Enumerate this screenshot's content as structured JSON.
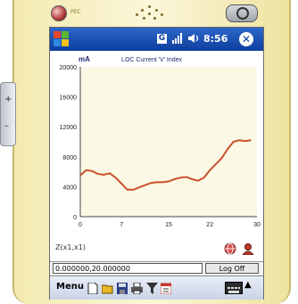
{
  "device": {
    "led_label": "PEC"
  },
  "titlebar": {
    "g_label": "G",
    "signal_icon": "signal-icon",
    "volume_icon": "volume-icon",
    "time": "8:56",
    "close_label": "✕"
  },
  "chart_data": {
    "type": "line",
    "title": "LOC Current 'V' Index",
    "ylabel": "mA",
    "xlabel": "",
    "xlim": [
      0,
      30
    ],
    "ylim": [
      0,
      20000
    ],
    "x_ticks": [
      "0",
      "7",
      "15",
      "22",
      "30"
    ],
    "y_ticks": [
      "0",
      "4000",
      "8000",
      "12000",
      "16000",
      "20000"
    ],
    "series": [
      {
        "color": "#c8502c",
        "x": [
          0,
          1,
          2,
          3,
          4,
          5,
          6,
          7,
          8,
          9,
          10,
          11,
          12,
          13,
          14,
          15,
          16,
          17,
          18,
          19,
          20,
          21,
          22,
          23,
          24,
          25,
          26,
          27,
          28,
          29
        ],
        "values": [
          5500,
          6200,
          6100,
          5700,
          5600,
          5800,
          5200,
          4400,
          3600,
          3600,
          3900,
          4200,
          4500,
          4600,
          4600,
          4700,
          5000,
          5200,
          5300,
          5000,
          4800,
          5200,
          6200,
          7000,
          7800,
          9000,
          10000,
          10200,
          10100,
          10200
        ]
      }
    ],
    "grid": false,
    "background": "#fbf9e6"
  },
  "formula": "Z(x1,x1)",
  "icons": {
    "a": "globe-icon",
    "b": "user-icon"
  },
  "status": {
    "coords": "0.000000,20.000000",
    "logoff": "Log Off"
  },
  "menubar": {
    "menu_label": "Menu",
    "icons": [
      "new-doc-icon",
      "open-folder-icon",
      "save-icon",
      "print-icon",
      "filter-icon",
      "calendar-icon"
    ],
    "keyboard_icon": "keyboard-icon",
    "arrow_label": "▲"
  }
}
